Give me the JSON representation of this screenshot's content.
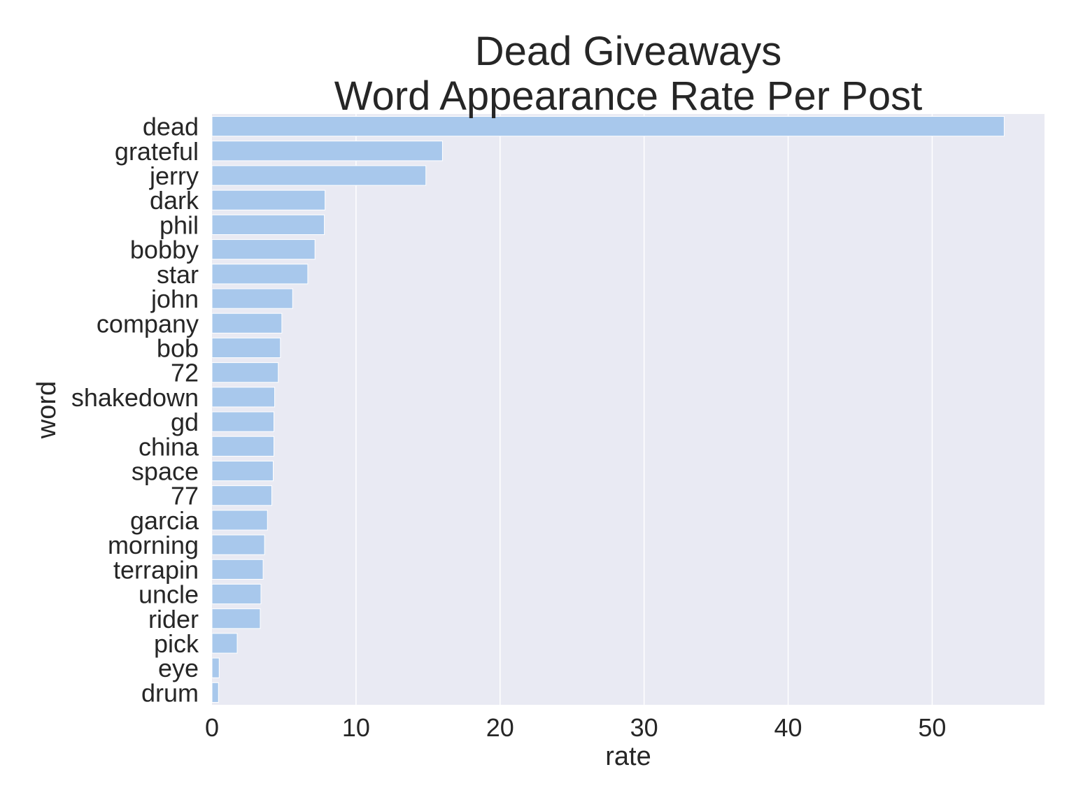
{
  "chart_data": {
    "type": "bar",
    "orientation": "horizontal",
    "title_lines": [
      "Dead Giveaways",
      "Word Appearance Rate Per Post"
    ],
    "xlabel": "rate",
    "ylabel": "word",
    "categories": [
      "dead",
      "grateful",
      "jerry",
      "dark",
      "phil",
      "bobby",
      "star",
      "john",
      "company",
      "bob",
      "72",
      "shakedown",
      "gd",
      "china",
      "space",
      "77",
      "garcia",
      "morning",
      "terrapin",
      "uncle",
      "rider",
      "pick",
      "eye",
      "drum"
    ],
    "values": [
      55.0,
      16.0,
      14.85,
      7.85,
      7.8,
      7.15,
      6.65,
      5.6,
      4.85,
      4.75,
      4.6,
      4.35,
      4.3,
      4.3,
      4.25,
      4.15,
      3.85,
      3.65,
      3.55,
      3.4,
      3.35,
      1.75,
      0.5,
      0.45
    ],
    "xlim": [
      0,
      57.8
    ],
    "xticks": [
      0,
      10,
      20,
      30,
      40,
      50
    ],
    "xtick_labels": [
      "0",
      "10",
      "20",
      "30",
      "40",
      "50"
    ],
    "grid": true,
    "legend": "none",
    "colors": {
      "bar": "#a8c8ec",
      "plot_background": "#e9eaf3",
      "grid": "#ffffff",
      "text": "#262626"
    }
  }
}
